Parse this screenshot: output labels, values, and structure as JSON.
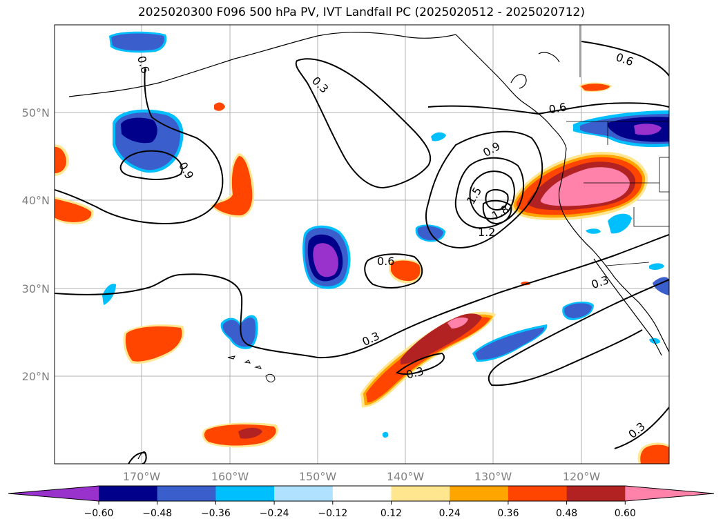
{
  "title": "2025020300 F096 500 hPa PV, IVT Landfall PC (2025020512 - 2025020712)",
  "map": {
    "lat_labels": [
      "50°N",
      "40°N",
      "30°N",
      "20°N"
    ],
    "lon_labels": [
      "170°W",
      "160°W",
      "150°W",
      "140°W",
      "130°W",
      "120°W"
    ],
    "contour_labels": [
      "0.6",
      "0.3",
      "0.6",
      "0.6",
      "0.9",
      "0.9",
      "1.5",
      "1.8",
      "1.2",
      "0.6",
      "0.3",
      "0.3",
      "0.3",
      "0.3"
    ],
    "gridlines": true,
    "extent": {
      "lon": [
        -180,
        -110
      ],
      "lat": [
        10,
        60
      ]
    }
  },
  "colorbar": {
    "tick_labels": [
      "−0.60",
      "−0.48",
      "−0.36",
      "−0.24",
      "−0.12",
      "0.12",
      "0.24",
      "0.36",
      "0.48",
      "0.60"
    ],
    "colors": [
      "#9932cc",
      "#00008b",
      "#3a5fcd",
      "#00bfff",
      "#b0e2ff",
      "#ffffff",
      "#ffe68f",
      "#ffa500",
      "#ff4500",
      "#b22222",
      "#ff82ab"
    ],
    "extend": "both"
  }
}
